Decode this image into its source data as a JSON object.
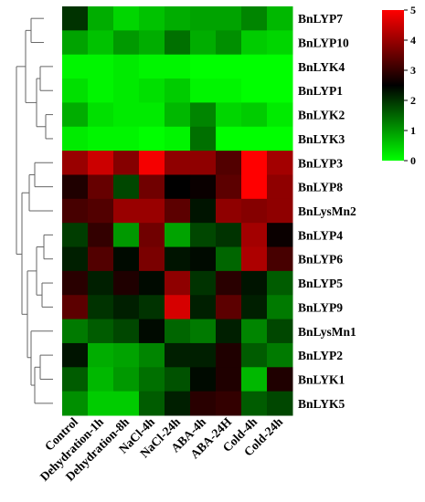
{
  "chart_data": {
    "type": "heatmap",
    "title": "",
    "xlabel": "",
    "ylabel": "",
    "columns": [
      "Control",
      "Dehydration-1h",
      "Dehydration-8h",
      "NaCl-4h",
      "NaCl-24h",
      "ABA-4h",
      "ABA-24H",
      "Cold-4h",
      "Cold-24h"
    ],
    "rows": [
      "BnLYP7",
      "BnLYP10",
      "BnLYK4",
      "BnLYP1",
      "BnLYK2",
      "BnLYK3",
      "BnLYP3",
      "BnLYP8",
      "BnLysMn2",
      "BnLYP4",
      "BnLYP6",
      "BnLYP5",
      "BnLYP9",
      "BnLysMn1",
      "BnLYP2",
      "BnLYK1",
      "BnLYK5"
    ],
    "values": [
      [
        2.0,
        0.8,
        0.4,
        0.6,
        0.8,
        0.9,
        0.9,
        1.2,
        0.7
      ],
      [
        0.9,
        0.6,
        1.0,
        0.8,
        1.4,
        0.8,
        1.1,
        0.5,
        0.4
      ],
      [
        0.1,
        0.1,
        0.2,
        0.1,
        0.1,
        0.0,
        0.0,
        0.0,
        0.0
      ],
      [
        0.3,
        0.1,
        0.2,
        0.3,
        0.5,
        0.1,
        0.1,
        0.0,
        0.0
      ],
      [
        0.8,
        0.3,
        0.2,
        0.2,
        0.7,
        1.2,
        0.4,
        0.5,
        0.2
      ],
      [
        0.2,
        0.1,
        0.1,
        0.0,
        0.1,
        1.4,
        0.0,
        0.0,
        0.0
      ],
      [
        4.0,
        4.5,
        3.8,
        4.9,
        3.9,
        3.9,
        3.3,
        5.0,
        4.1
      ],
      [
        2.8,
        3.5,
        1.8,
        3.6,
        2.5,
        2.6,
        3.4,
        5.0,
        3.9
      ],
      [
        3.2,
        3.3,
        4.0,
        4.0,
        3.4,
        2.3,
        3.9,
        3.8,
        3.9
      ],
      [
        1.9,
        3.0,
        1.0,
        3.6,
        0.9,
        1.8,
        2.0,
        4.1,
        2.6
      ],
      [
        2.2,
        3.3,
        2.4,
        3.7,
        2.3,
        2.4,
        1.5,
        4.2,
        3.2
      ],
      [
        2.9,
        2.2,
        2.8,
        2.4,
        3.9,
        2.0,
        2.9,
        2.3,
        1.6
      ],
      [
        3.4,
        2.0,
        2.2,
        2.0,
        4.6,
        2.2,
        3.4,
        2.2,
        1.3
      ],
      [
        1.3,
        1.6,
        1.8,
        2.4,
        1.5,
        1.3,
        2.2,
        1.2,
        1.8
      ],
      [
        2.3,
        0.8,
        0.9,
        1.2,
        2.2,
        2.2,
        2.8,
        1.6,
        1.3
      ],
      [
        1.6,
        0.7,
        1.0,
        1.4,
        1.7,
        2.4,
        2.8,
        0.7,
        2.8
      ],
      [
        1.1,
        0.5,
        0.5,
        1.6,
        2.2,
        2.9,
        3.0,
        1.6,
        1.8
      ]
    ],
    "colorbar": {
      "min": 0,
      "max": 5,
      "ticks": [
        0,
        1,
        2,
        3,
        4,
        5
      ],
      "colors": {
        "low": "#00ff00",
        "mid": "#000000",
        "high": "#ff0000"
      }
    },
    "dendrogram": "left"
  }
}
